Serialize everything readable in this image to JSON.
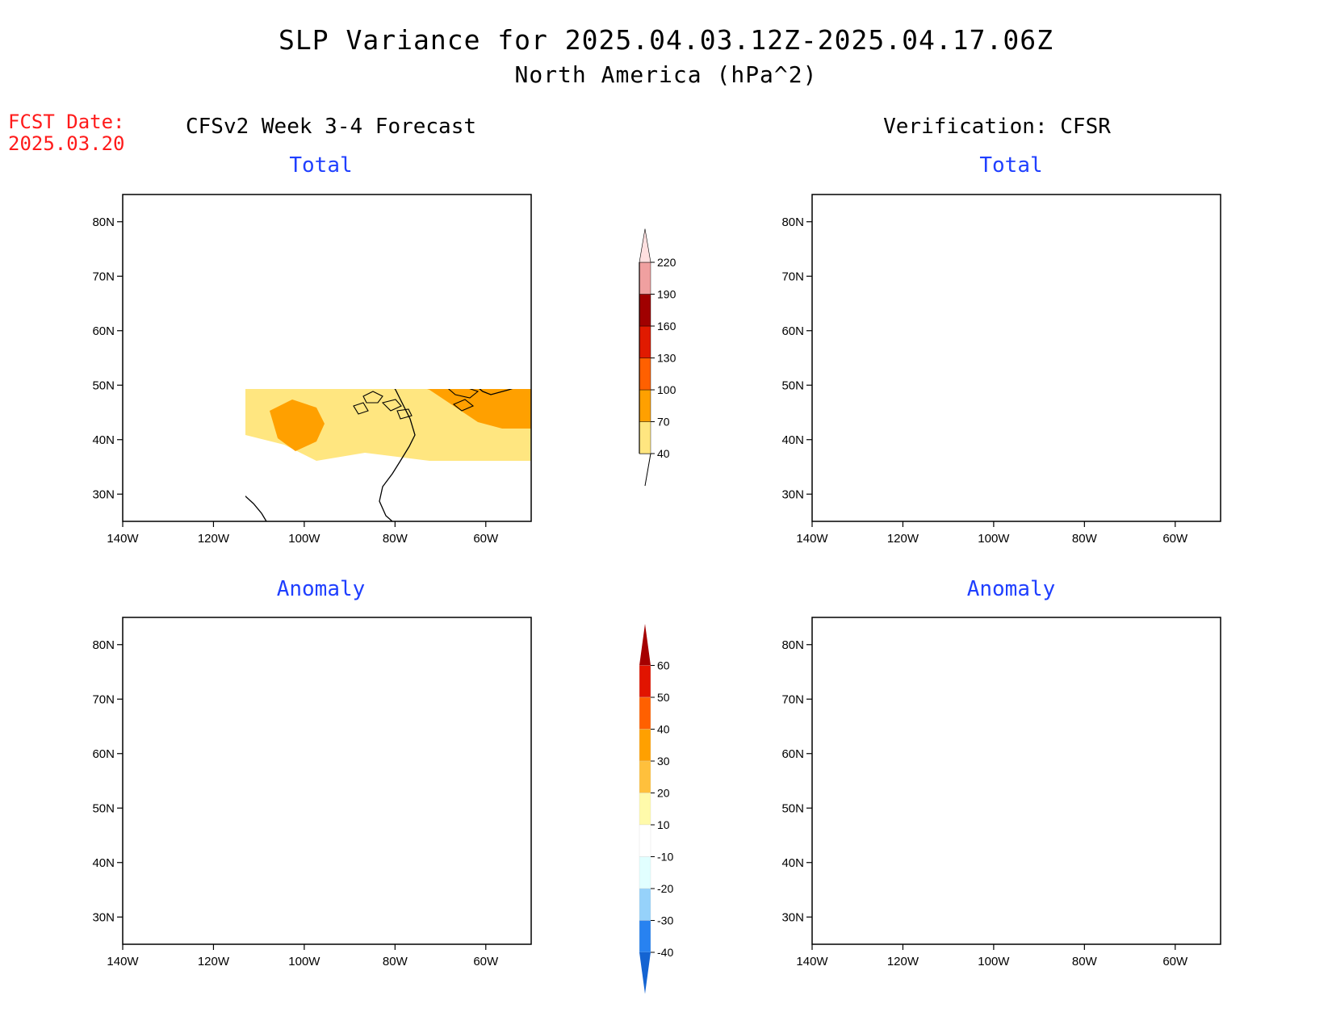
{
  "title": "SLP Variance for 2025.04.03.12Z-2025.04.17.06Z",
  "subtitle": "North America (hPa^2)",
  "fcst_date": {
    "label": "FCST Date:",
    "value": "2025.03.20"
  },
  "left_column_title": "CFSv2 Week 3-4 Forecast",
  "right_column_title": "Verification: CFSR",
  "panels": {
    "fcst_total": {
      "title": "Total"
    },
    "fcst_anomaly": {
      "title": "Anomaly"
    },
    "ver_total": {
      "title": "Total"
    },
    "ver_anomaly": {
      "title": "Anomaly"
    }
  },
  "map": {
    "lon_ticks": [
      "140W",
      "120W",
      "100W",
      "80W",
      "60W"
    ],
    "lat_ticks": [
      "80N",
      "70N",
      "60N",
      "50N",
      "40N",
      "30N"
    ],
    "lon_range": [
      -140,
      -50
    ],
    "lat_range": [
      25,
      85
    ],
    "land_outline_color": "#000000"
  },
  "colorbars": {
    "total": {
      "labels": [
        "40",
        "70",
        "100",
        "130",
        "160",
        "190",
        "220"
      ],
      "colors": [
        "#ffe680",
        "#ffa000",
        "#ff6000",
        "#e01a00",
        "#a00000",
        "#f0a0a0",
        "#ffe0e0"
      ]
    },
    "anomaly": {
      "labels": [
        "-40",
        "-30",
        "-20",
        "-10",
        "10",
        "20",
        "30",
        "40",
        "50",
        "60"
      ],
      "colors": [
        "#1464d2",
        "#2882f0",
        "#96d2fa",
        "#e1ffff",
        "#ffffff",
        "#fffaaa",
        "#ffc03c",
        "#ffa000",
        "#ff6000",
        "#e11400",
        "#a50000"
      ]
    }
  }
}
